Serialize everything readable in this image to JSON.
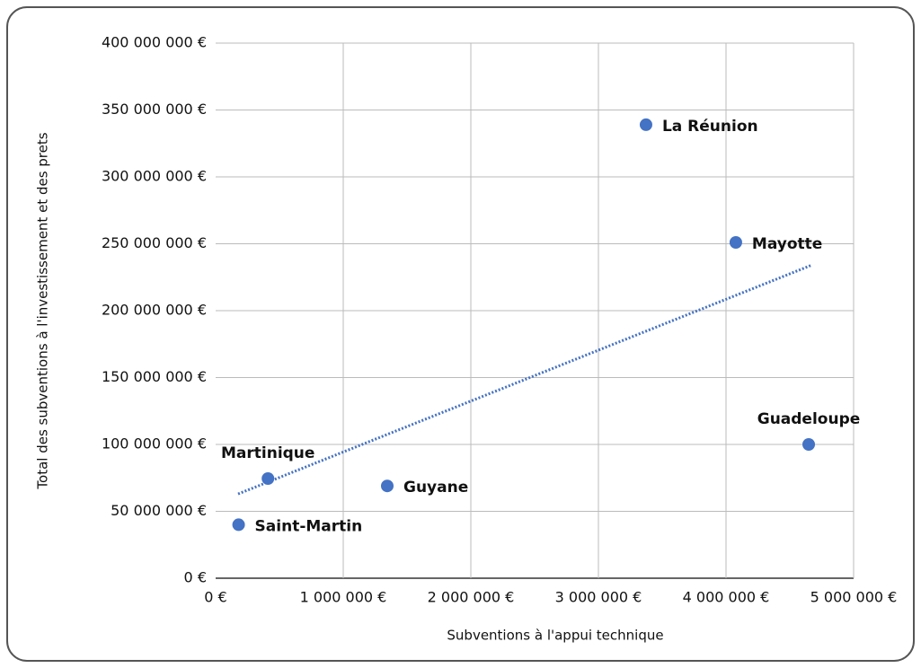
{
  "chart_data": {
    "type": "scatter",
    "x_label": "Subventions à l'appui technique",
    "y_label": "Total des subventions à l'investissement et des prets",
    "categories": [
      "Saint-Martin",
      "Martinique",
      "Guyane",
      "La Réunion",
      "Mayotte",
      "Guadeloupe"
    ],
    "x": [
      180000,
      410000,
      1345000,
      3373000,
      4077000,
      4648000
    ],
    "values": [
      40000000,
      74500000,
      69000000,
      339000000,
      251000000,
      100000000
    ],
    "color": "#4472c4",
    "trendline": {
      "x": [
        176000,
        4670000
      ],
      "values": [
        63000000,
        234000000
      ],
      "color": "#4472c4"
    },
    "xlim": [
      0,
      5000000
    ],
    "xticks": [
      {
        "value": 0,
        "label": "0 €"
      },
      {
        "value": 1000000,
        "label": "1 000 000 €"
      },
      {
        "value": 2000000,
        "label": "2 000 000 €"
      },
      {
        "value": 3000000,
        "label": "3 000 000 €"
      },
      {
        "value": 4000000,
        "label": "4 000 000 €"
      },
      {
        "value": 5000000,
        "label": "5 000 000 €"
      }
    ],
    "ylim": [
      0,
      400000000
    ],
    "yticks": [
      {
        "value": 0,
        "label": "0 €"
      },
      {
        "value": 50000000,
        "label": "50 000 000 €"
      },
      {
        "value": 100000000,
        "label": "100 000 000 €"
      },
      {
        "value": 150000000,
        "label": "150 000 000 €"
      },
      {
        "value": 200000000,
        "label": "200 000 000 €"
      },
      {
        "value": 250000000,
        "label": "250 000 000 €"
      },
      {
        "value": 300000000,
        "label": "300 000 000 €"
      },
      {
        "value": 350000000,
        "label": "350 000 000 €"
      },
      {
        "value": 400000000,
        "label": "400 000 000 €"
      }
    ],
    "grid": true
  }
}
